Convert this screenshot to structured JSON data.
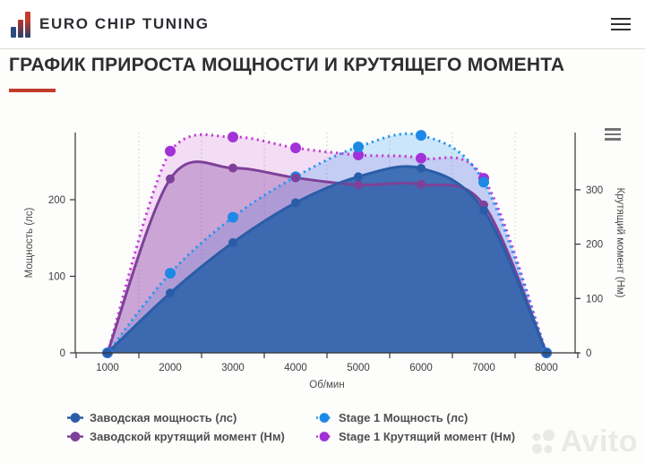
{
  "header": {
    "brand": "EURO CHIP TUNING",
    "menu_icon": "hamburger-icon"
  },
  "page_title": "ГРАФИК ПРИРОСТА МОЩНОСТИ И КРУТЯЩЕГО МОМЕНТА",
  "accent_color": "#c23b2c",
  "watermark": {
    "text": "Avito"
  },
  "chart_data": {
    "type": "area",
    "x": [
      1000,
      2000,
      3000,
      4000,
      5000,
      6000,
      7000,
      8000
    ],
    "xlabel": "Об/мин",
    "ylabel_left": "Мощность (лс)",
    "ylabel_right": "Крутящий момент (Нм)",
    "yticks_left": [
      0,
      100,
      200
    ],
    "yticks_right": [
      0,
      100,
      200,
      300
    ],
    "ylim_left": [
      0,
      288
    ],
    "ylim_right": [
      0,
      405
    ],
    "grid": "vertical-dotted-between-categories",
    "legend_position": "bottom",
    "series": [
      {
        "name": "Заводская мощность (лс)",
        "axis": "left",
        "line": "solid",
        "color": "#2a5da8",
        "marker_color": "#2a5da8",
        "fill": "rgba(42,97,170,0.86)",
        "marker_r": 5,
        "values": [
          0,
          78,
          144,
          196,
          230,
          241,
          186,
          0
        ]
      },
      {
        "name": "Stage 1 Мощность (лс)",
        "axis": "left",
        "line": "dotted",
        "color": "#2196f3",
        "marker_color": "#1e88e5",
        "fill": "rgba(33,150,243,0.22)",
        "marker_r": 6,
        "values": [
          0,
          104,
          177,
          230,
          269,
          284,
          223,
          0
        ]
      },
      {
        "name": "Заводской крутящий момент (Нм)",
        "axis": "right",
        "line": "solid",
        "color": "#7e4199",
        "marker_color": "#7e4199",
        "fill": "rgba(139,74,163,0.38)",
        "marker_r": 5,
        "values": [
          0,
          320,
          340,
          322,
          309,
          310,
          272,
          0
        ]
      },
      {
        "name": "Stage 1 Крутящий момент (Нм)",
        "axis": "right",
        "line": "dotted",
        "color": "#c33bd2",
        "marker_color": "#a232d8",
        "fill": "rgba(195,59,210,0.16)",
        "marker_r": 6,
        "values": [
          0,
          371,
          397,
          377,
          364,
          358,
          321,
          0
        ]
      }
    ],
    "draw_order": [
      3,
      1,
      2,
      0
    ]
  }
}
